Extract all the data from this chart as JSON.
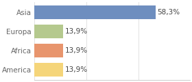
{
  "categories": [
    "America",
    "Africa",
    "Europa",
    "Asia"
  ],
  "values": [
    13.9,
    13.9,
    13.9,
    58.3
  ],
  "bar_colors": [
    "#f5d57a",
    "#e8956d",
    "#b5c98e",
    "#6e8ebf"
  ],
  "label_texts": [
    "13,9%",
    "13,9%",
    "13,9%",
    "58,3%"
  ],
  "xlim": [
    0,
    75
  ],
  "background_color": "#ffffff",
  "bar_height": 0.72,
  "label_fontsize": 7.5,
  "tick_fontsize": 7.5,
  "tick_color": "#666666",
  "label_color": "#444444"
}
